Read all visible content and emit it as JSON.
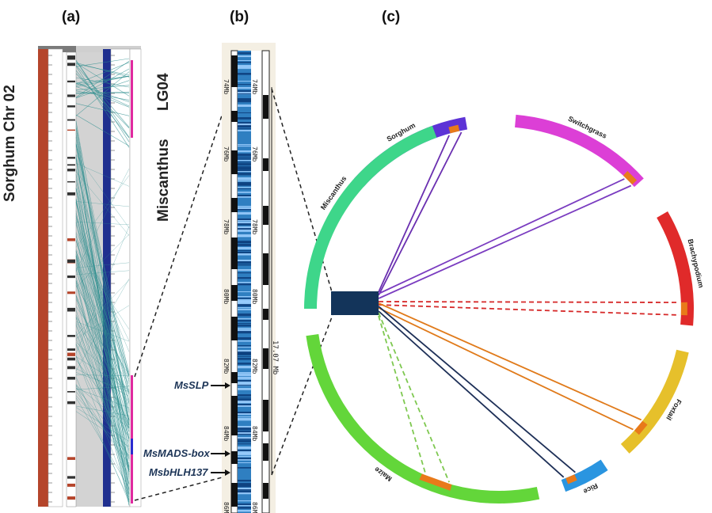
{
  "panels": {
    "a": "(a)",
    "b": "(b)",
    "c": "(c)"
  },
  "panel_a": {
    "left_chromosome": "Sorghum   Chr 02",
    "right_species": "Miscanthus",
    "right_chromosome": "LG04",
    "left_colors": {
      "bar": "#b5452b",
      "window": "#d6d6d6",
      "right_bar": "#1f2f8f",
      "links": "#2f8f8f",
      "highlight": "#e02aa0"
    }
  },
  "panel_b": {
    "ticks": [
      "74Mb",
      "76Mb",
      "78Mb",
      "80Mb",
      "82Mb",
      "84Mb",
      "86Mb"
    ],
    "span_label": "17.07 Mb",
    "genes": [
      {
        "name": "MsSLP"
      },
      {
        "name": "MsMADS-box"
      },
      {
        "name": "MsbHLH137"
      }
    ],
    "colors": {
      "heat": "#2f7fc1",
      "heat_dark": "#0b3c7a"
    }
  },
  "panel_c": {
    "species": [
      {
        "name": "Sorghum",
        "color": "#5d33d6"
      },
      {
        "name": "Switchgrass",
        "color": "#dc3fd6"
      },
      {
        "name": "Brachypodium",
        "color": "#e02a2a"
      },
      {
        "name": "Foxtail",
        "color": "#e6c02b"
      },
      {
        "name": "Rice",
        "color": "#2a95e0"
      },
      {
        "name": "Maize",
        "color": "#63d63a"
      },
      {
        "name": "Miscanthus",
        "color": "#3ed68a"
      }
    ],
    "link_colors": {
      "sorghum": "#6a2fb0",
      "switchgrass": "#7a3cc0",
      "brachypodium": "#d62828",
      "foxtail": "#e07a1a",
      "rice": "#1d2f57",
      "maize": "#7ec850"
    },
    "block_color": "#13345a",
    "marker_color": "#e87a1a"
  }
}
